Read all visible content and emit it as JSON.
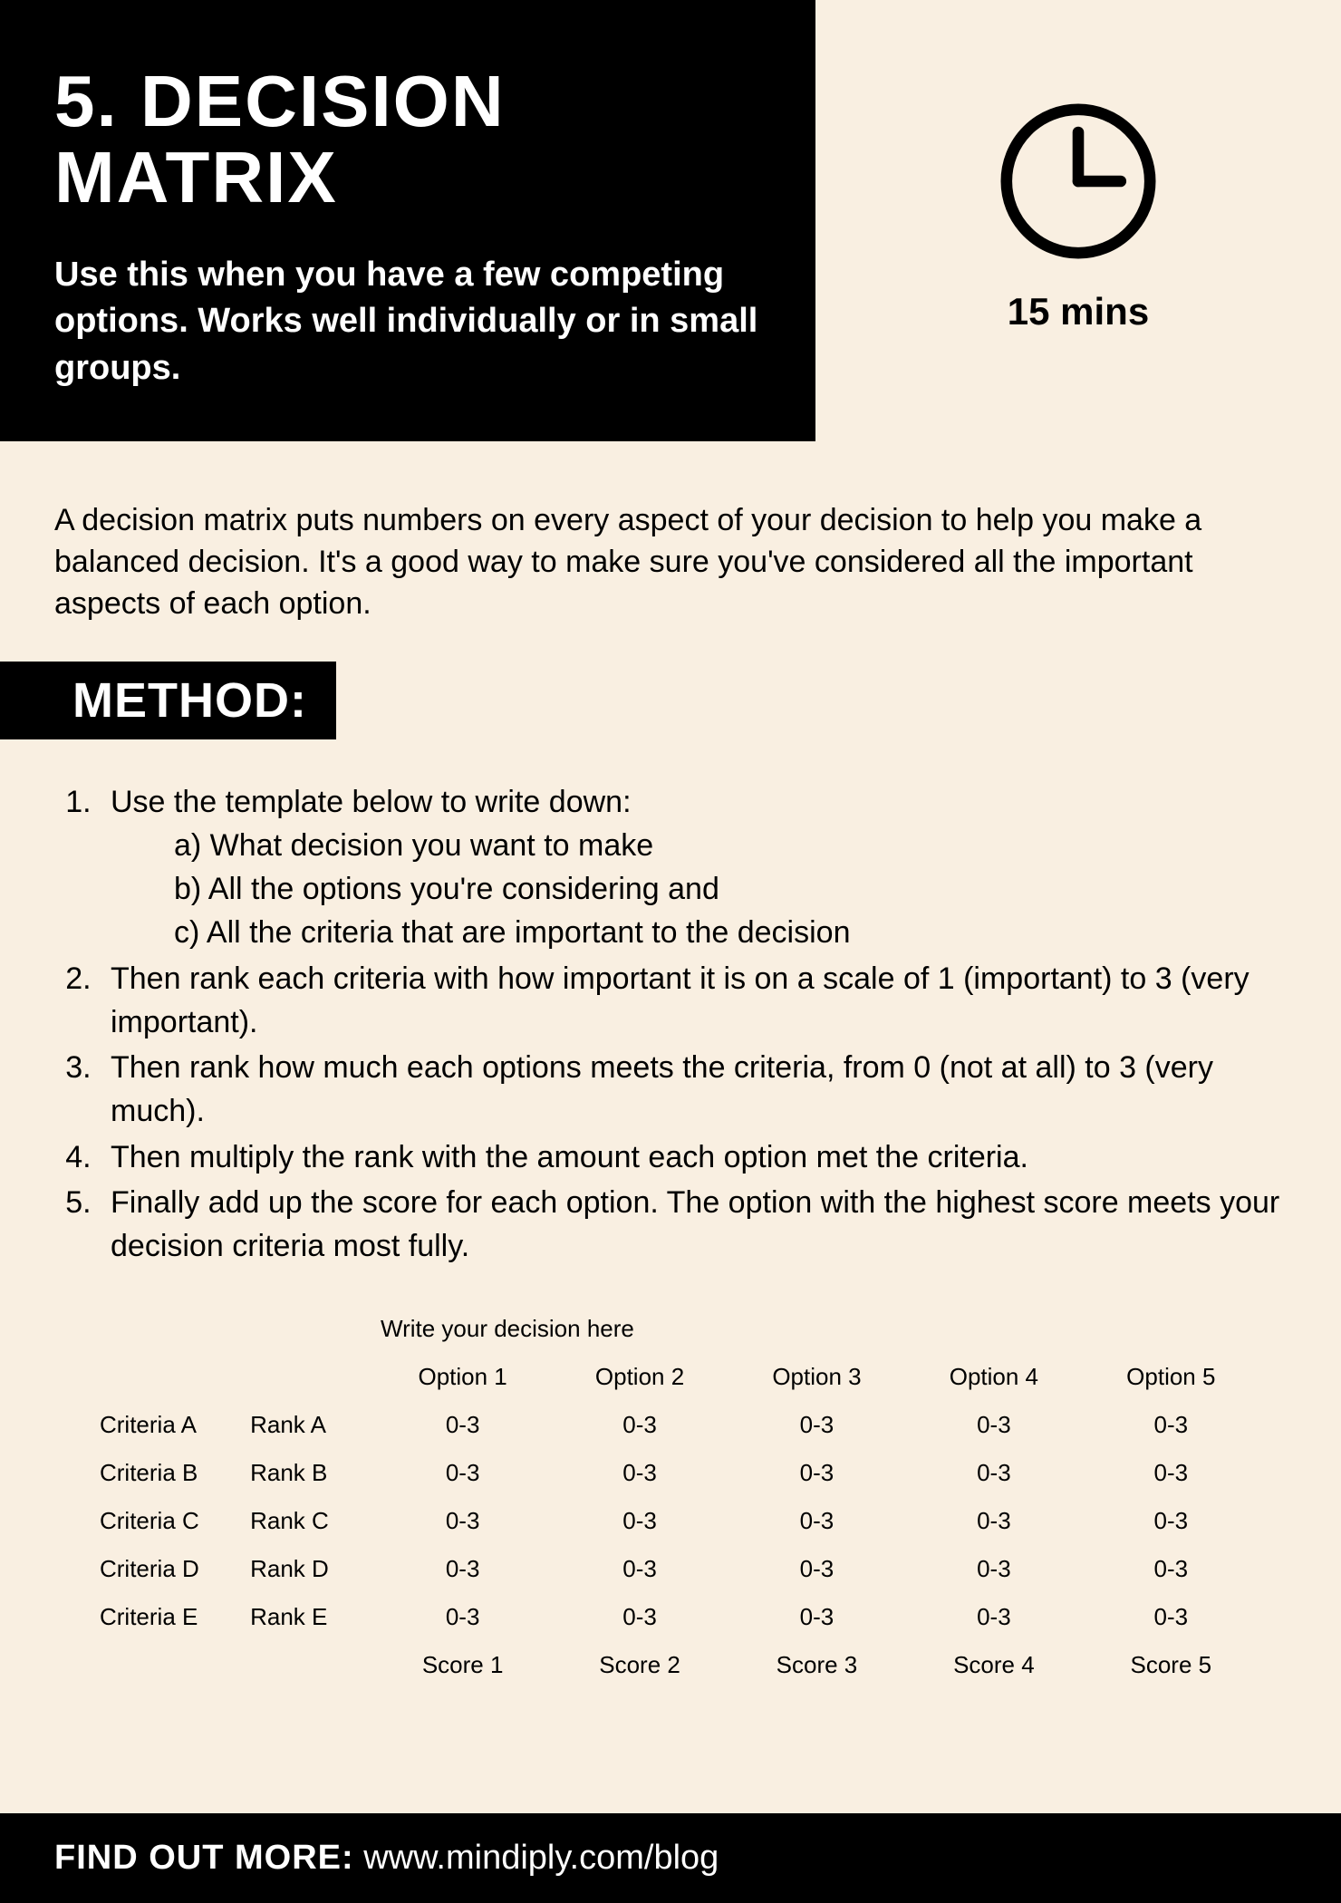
{
  "colors": {
    "bg": "#f9efe1",
    "black": "#000000",
    "white": "#ffffff"
  },
  "header": {
    "number": "5.",
    "title_line1": "5. DECISION",
    "title_line2": "MATRIX",
    "subtitle": "Use this when you have a few competing options. Works well individually or in small groups."
  },
  "time": {
    "label": "15 mins",
    "icon": "clock-icon"
  },
  "intro": "A decision matrix puts numbers on every aspect of your decision to help you make a balanced decision. It's a good way to make sure you've considered all the important aspects of each option.",
  "method": {
    "heading": "METHOD:",
    "steps": [
      "Use the template below to write down:",
      "Then rank each criteria with how important it is on a scale of 1 (important) to 3 (very important).",
      "Then rank how much each options meets the criteria, from 0 (not at all) to 3 (very much).",
      "Then multiply the rank with the amount each option met the criteria.",
      "Finally add up the score for each option. The option with the highest score meets your decision criteria most fully."
    ],
    "sub": [
      "a) What decision you want to make",
      "b) All the options you're considering and",
      "c) All the criteria that are important to the decision"
    ]
  },
  "matrix": {
    "decision_label": "Write your decision here",
    "options": [
      "Option 1",
      "Option 2",
      "Option 3",
      "Option 4",
      "Option 5"
    ],
    "rows": [
      {
        "criteria": "Criteria A",
        "rank": "Rank A",
        "cells": [
          "0-3",
          "0-3",
          "0-3",
          "0-3",
          "0-3"
        ]
      },
      {
        "criteria": "Criteria B",
        "rank": "Rank B",
        "cells": [
          "0-3",
          "0-3",
          "0-3",
          "0-3",
          "0-3"
        ]
      },
      {
        "criteria": "Criteria C",
        "rank": "Rank C",
        "cells": [
          "0-3",
          "0-3",
          "0-3",
          "0-3",
          "0-3"
        ]
      },
      {
        "criteria": "Criteria D",
        "rank": "Rank D",
        "cells": [
          "0-3",
          "0-3",
          "0-3",
          "0-3",
          "0-3"
        ]
      },
      {
        "criteria": "Criteria E",
        "rank": "Rank E",
        "cells": [
          "0-3",
          "0-3",
          "0-3",
          "0-3",
          "0-3"
        ]
      }
    ],
    "scores": [
      "Score 1",
      "Score 2",
      "Score 3",
      "Score 4",
      "Score 5"
    ]
  },
  "footer": {
    "label": "FIND OUT MORE:",
    "url": "www.mindiply.com/blog"
  }
}
